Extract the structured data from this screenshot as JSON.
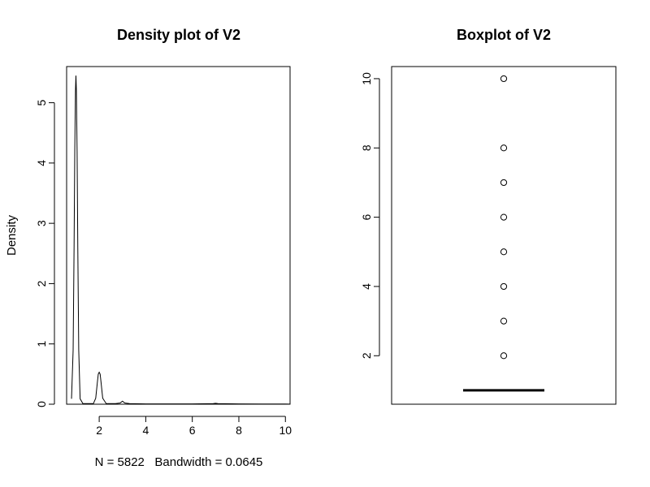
{
  "chart_data": [
    {
      "type": "line",
      "title": "Density plot of V2",
      "xlabel": "N = 5822   Bandwidth = 0.0645",
      "ylabel": "Density",
      "xlim": [
        0.6,
        10.2
      ],
      "ylim": [
        0,
        5.6
      ],
      "xticks": [
        2,
        4,
        6,
        8,
        10
      ],
      "yticks": [
        0,
        1,
        2,
        3,
        4,
        5
      ],
      "grid": false,
      "series": [
        {
          "x": [
            0.81,
            0.88,
            0.92,
            0.95,
            0.98,
            1.0,
            1.02,
            1.05,
            1.08,
            1.12,
            1.18,
            1.3,
            1.5,
            1.75,
            1.85,
            1.92,
            1.96,
            2.0,
            2.04,
            2.08,
            2.15,
            2.3,
            2.7,
            2.9,
            3.0,
            3.1,
            3.3,
            4.0,
            5.0,
            6.0,
            6.9,
            7.0,
            7.1,
            8.0,
            9.0,
            10.0,
            10.19
          ],
          "y": [
            0.09,
            0.9,
            2.6,
            4.2,
            5.2,
            5.45,
            5.2,
            4.2,
            2.6,
            0.9,
            0.09,
            0.01,
            0.01,
            0.01,
            0.1,
            0.36,
            0.5,
            0.53,
            0.5,
            0.36,
            0.1,
            0.01,
            0.01,
            0.02,
            0.05,
            0.02,
            0.01,
            0.005,
            0.005,
            0.005,
            0.01,
            0.015,
            0.01,
            0.005,
            0.003,
            0.003,
            0.002
          ]
        }
      ]
    },
    {
      "type": "box",
      "title": "Boxplot of V2",
      "ylim": [
        0.6,
        10.35
      ],
      "yticks": [
        2,
        4,
        6,
        8,
        10
      ],
      "grid": false,
      "box": {
        "min": 1,
        "q1": 1,
        "median": 1,
        "q3": 1,
        "max": 1
      },
      "outliers": [
        2,
        3,
        4,
        5,
        6,
        7,
        8,
        10
      ]
    }
  ]
}
